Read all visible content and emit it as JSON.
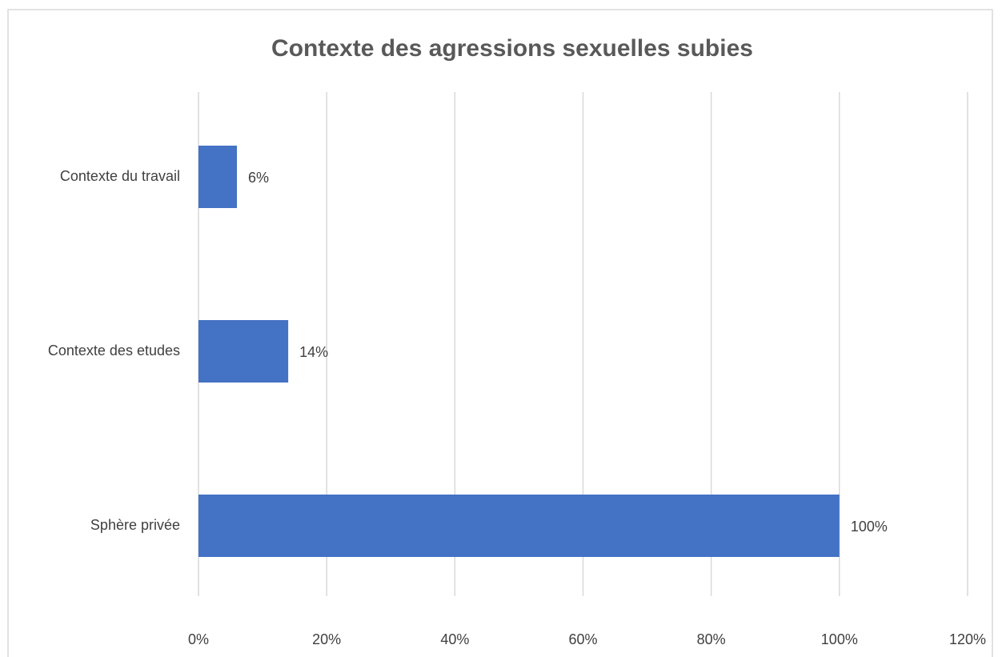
{
  "chart_data": {
    "type": "bar",
    "orientation": "horizontal",
    "title": "Contexte des agressions sexuelles subies",
    "categories": [
      "Contexte du travail",
      "Contexte des etudes",
      "Sphère privée"
    ],
    "values": [
      6,
      14,
      100
    ],
    "value_labels": [
      "6%",
      "14%",
      "100%"
    ],
    "color": "#4472c4",
    "xlim": [
      0,
      120
    ],
    "xticks": [
      {
        "value": 0,
        "label": "0%"
      },
      {
        "value": 20,
        "label": "20%"
      },
      {
        "value": 40,
        "label": "40%"
      },
      {
        "value": 60,
        "label": "60%"
      },
      {
        "value": 80,
        "label": "80%"
      },
      {
        "value": 100,
        "label": "100%"
      },
      {
        "value": 120,
        "label": "120%"
      }
    ],
    "grid": true
  }
}
